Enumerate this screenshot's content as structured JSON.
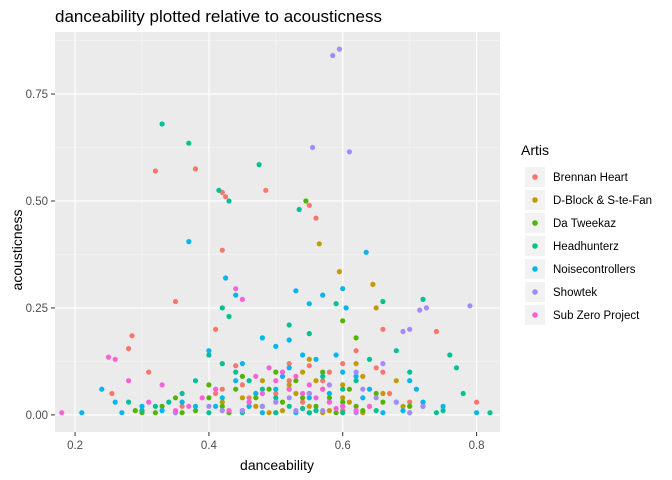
{
  "chart_data": {
    "type": "scatter",
    "title": "danceability plotted relative to acousticness",
    "xlabel": "danceability",
    "ylabel": "acousticness",
    "xlim": [
      0.17,
      0.835
    ],
    "ylim": [
      -0.04,
      0.895
    ],
    "xticks": [
      0.2,
      0.4,
      0.6,
      0.8
    ],
    "xtick_labels": [
      "0.2",
      "0.4",
      "0.6",
      "0.8"
    ],
    "yticks": [
      0.0,
      0.25,
      0.5,
      0.75
    ],
    "ytick_labels": [
      "0.00",
      "0.25",
      "0.50",
      "0.75"
    ],
    "grid": true,
    "legend_title": "Artis",
    "legend_position": "right",
    "series": [
      {
        "name": "Brennan Heart",
        "color": "#F8766D",
        "points": [
          [
            0.32,
            0.57
          ],
          [
            0.38,
            0.575
          ],
          [
            0.42,
            0.385
          ],
          [
            0.425,
            0.51
          ],
          [
            0.42,
            0.52
          ],
          [
            0.485,
            0.525
          ],
          [
            0.35,
            0.265
          ],
          [
            0.285,
            0.185
          ],
          [
            0.28,
            0.155
          ],
          [
            0.255,
            0.05
          ],
          [
            0.31,
            0.1
          ],
          [
            0.41,
            0.2
          ],
          [
            0.44,
            0.115
          ],
          [
            0.45,
            0.07
          ],
          [
            0.5,
            0.05
          ],
          [
            0.52,
            0.12
          ],
          [
            0.55,
            0.115
          ],
          [
            0.57,
            0.08
          ],
          [
            0.6,
            0.12
          ],
          [
            0.62,
            0.15
          ],
          [
            0.65,
            0.11
          ],
          [
            0.66,
            0.2
          ],
          [
            0.74,
            0.195
          ],
          [
            0.8,
            0.03
          ],
          [
            0.56,
            0.46
          ],
          [
            0.55,
            0.49
          ],
          [
            0.41,
            0.05
          ],
          [
            0.58,
            0.1
          ],
          [
            0.54,
            0.03
          ],
          [
            0.6,
            0.02
          ],
          [
            0.7,
            0.03
          ],
          [
            0.66,
            0.1
          ],
          [
            0.46,
            0.04
          ],
          [
            0.42,
            0.06
          ],
          [
            0.52,
            0.08
          ],
          [
            0.48,
            0.02
          ],
          [
            0.6,
            0.01
          ],
          [
            0.36,
            0.02
          ],
          [
            0.3,
            0.01
          ],
          [
            0.67,
            0.05
          ]
        ]
      },
      {
        "name": "D-Block & S-te-Fan",
        "color": "#C49A00",
        "points": [
          [
            0.565,
            0.4
          ],
          [
            0.595,
            0.335
          ],
          [
            0.645,
            0.305
          ],
          [
            0.65,
            0.25
          ],
          [
            0.55,
            0.13
          ],
          [
            0.57,
            0.06
          ],
          [
            0.6,
            0.04
          ],
          [
            0.5,
            0.03
          ],
          [
            0.52,
            0.07
          ],
          [
            0.62,
            0.12
          ],
          [
            0.63,
            0.09
          ],
          [
            0.45,
            0.04
          ],
          [
            0.48,
            0.08
          ],
          [
            0.55,
            0.02
          ],
          [
            0.58,
            0.01
          ],
          [
            0.64,
            0.02
          ],
          [
            0.66,
            0.05
          ],
          [
            0.53,
            0.05
          ],
          [
            0.47,
            0.02
          ],
          [
            0.42,
            0.03
          ],
          [
            0.56,
            0.08
          ],
          [
            0.61,
            0.03
          ],
          [
            0.69,
            0.02
          ],
          [
            0.68,
            0.08
          ],
          [
            0.51,
            0.01
          ],
          [
            0.57,
            0.005
          ],
          [
            0.6,
            0.07
          ],
          [
            0.54,
            0.1
          ],
          [
            0.49,
            0.005
          ],
          [
            0.63,
            0.005
          ]
        ]
      },
      {
        "name": "Da Tweekaz",
        "color": "#53B400",
        "points": [
          [
            0.545,
            0.5
          ],
          [
            0.6,
            0.22
          ],
          [
            0.62,
            0.18
          ],
          [
            0.5,
            0.1
          ],
          [
            0.45,
            0.09
          ],
          [
            0.4,
            0.07
          ],
          [
            0.52,
            0.06
          ],
          [
            0.55,
            0.05
          ],
          [
            0.58,
            0.04
          ],
          [
            0.6,
            0.03
          ],
          [
            0.62,
            0.02
          ],
          [
            0.48,
            0.02
          ],
          [
            0.42,
            0.02
          ],
          [
            0.38,
            0.01
          ],
          [
            0.35,
            0.04
          ],
          [
            0.33,
            0.02
          ],
          [
            0.3,
            0.005
          ],
          [
            0.5,
            0.005
          ],
          [
            0.55,
            0.005
          ],
          [
            0.45,
            0.01
          ],
          [
            0.47,
            0.04
          ],
          [
            0.53,
            0.08
          ],
          [
            0.57,
            0.1
          ],
          [
            0.65,
            0.05
          ],
          [
            0.7,
            0.02
          ],
          [
            0.4,
            0.04
          ],
          [
            0.44,
            0.06
          ],
          [
            0.51,
            0.03
          ],
          [
            0.56,
            0.02
          ],
          [
            0.59,
            0.005
          ],
          [
            0.36,
            0.005
          ],
          [
            0.32,
            0.005
          ],
          [
            0.29,
            0.01
          ],
          [
            0.49,
            0.06
          ],
          [
            0.54,
            0.04
          ],
          [
            0.61,
            0.06
          ],
          [
            0.63,
            0.01
          ],
          [
            0.66,
            0.03
          ],
          [
            0.43,
            0.005
          ],
          [
            0.46,
            0.02
          ]
        ]
      },
      {
        "name": "Headhunterz",
        "color": "#00C094",
        "points": [
          [
            0.33,
            0.68
          ],
          [
            0.37,
            0.635
          ],
          [
            0.475,
            0.585
          ],
          [
            0.415,
            0.525
          ],
          [
            0.43,
            0.5
          ],
          [
            0.535,
            0.48
          ],
          [
            0.42,
            0.25
          ],
          [
            0.43,
            0.23
          ],
          [
            0.52,
            0.21
          ],
          [
            0.55,
            0.19
          ],
          [
            0.59,
            0.26
          ],
          [
            0.66,
            0.265
          ],
          [
            0.72,
            0.27
          ],
          [
            0.76,
            0.14
          ],
          [
            0.77,
            0.11
          ],
          [
            0.78,
            0.05
          ],
          [
            0.82,
            0.005
          ],
          [
            0.74,
            0.005
          ],
          [
            0.72,
            0.02
          ],
          [
            0.7,
            0.1
          ],
          [
            0.68,
            0.15
          ],
          [
            0.64,
            0.13
          ],
          [
            0.62,
            0.08
          ],
          [
            0.6,
            0.06
          ],
          [
            0.58,
            0.03
          ],
          [
            0.56,
            0.01
          ],
          [
            0.54,
            0.015
          ],
          [
            0.52,
            0.02
          ],
          [
            0.5,
            0.04
          ],
          [
            0.48,
            0.06
          ],
          [
            0.46,
            0.08
          ],
          [
            0.44,
            0.1
          ],
          [
            0.42,
            0.12
          ],
          [
            0.4,
            0.14
          ],
          [
            0.38,
            0.08
          ],
          [
            0.36,
            0.05
          ],
          [
            0.34,
            0.03
          ],
          [
            0.32,
            0.02
          ],
          [
            0.3,
            0.01
          ],
          [
            0.28,
            0.03
          ],
          [
            0.55,
            0.005
          ],
          [
            0.6,
            0.005
          ],
          [
            0.65,
            0.01
          ],
          [
            0.7,
            0.005
          ],
          [
            0.75,
            0.01
          ],
          [
            0.5,
            0.005
          ],
          [
            0.45,
            0.005
          ],
          [
            0.4,
            0.005
          ],
          [
            0.35,
            0.005
          ],
          [
            0.57,
            0.09
          ]
        ]
      },
      {
        "name": "Noisecontrollers",
        "color": "#00B6EB",
        "points": [
          [
            0.37,
            0.405
          ],
          [
            0.425,
            0.32
          ],
          [
            0.44,
            0.28
          ],
          [
            0.53,
            0.29
          ],
          [
            0.57,
            0.28
          ],
          [
            0.55,
            0.26
          ],
          [
            0.6,
            0.295
          ],
          [
            0.635,
            0.38
          ],
          [
            0.605,
            0.25
          ],
          [
            0.4,
            0.15
          ],
          [
            0.48,
            0.18
          ],
          [
            0.5,
            0.16
          ],
          [
            0.52,
            0.175
          ],
          [
            0.54,
            0.14
          ],
          [
            0.45,
            0.12
          ],
          [
            0.6,
            0.1
          ],
          [
            0.62,
            0.09
          ],
          [
            0.7,
            0.08
          ],
          [
            0.72,
            0.03
          ],
          [
            0.75,
            0.02
          ],
          [
            0.8,
            0.005
          ],
          [
            0.21,
            0.005
          ],
          [
            0.24,
            0.06
          ],
          [
            0.26,
            0.03
          ],
          [
            0.33,
            0.01
          ],
          [
            0.38,
            0.02
          ],
          [
            0.42,
            0.04
          ],
          [
            0.46,
            0.02
          ],
          [
            0.5,
            0.06
          ],
          [
            0.55,
            0.04
          ],
          [
            0.58,
            0.05
          ],
          [
            0.63,
            0.04
          ],
          [
            0.68,
            0.03
          ],
          [
            0.71,
            0.06
          ],
          [
            0.44,
            0.08
          ],
          [
            0.52,
            0.11
          ],
          [
            0.56,
            0.13
          ],
          [
            0.6,
            0.02
          ],
          [
            0.48,
            0.005
          ],
          [
            0.53,
            0.005
          ],
          [
            0.66,
            0.005
          ],
          [
            0.36,
            0.03
          ],
          [
            0.3,
            0.02
          ],
          [
            0.27,
            0.005
          ],
          [
            0.51,
            0.09
          ],
          [
            0.59,
            0.14
          ],
          [
            0.64,
            0.06
          ],
          [
            0.47,
            0.05
          ],
          [
            0.41,
            0.02
          ],
          [
            0.69,
            0.01
          ]
        ]
      },
      {
        "name": "Showtek",
        "color": "#A58AFF",
        "points": [
          [
            0.585,
            0.84
          ],
          [
            0.595,
            0.855
          ],
          [
            0.555,
            0.625
          ],
          [
            0.61,
            0.615
          ],
          [
            0.79,
            0.255
          ],
          [
            0.725,
            0.25
          ],
          [
            0.715,
            0.245
          ],
          [
            0.7,
            0.2
          ],
          [
            0.69,
            0.195
          ],
          [
            0.66,
            0.12
          ],
          [
            0.62,
            0.1
          ],
          [
            0.58,
            0.07
          ],
          [
            0.55,
            0.05
          ],
          [
            0.52,
            0.04
          ],
          [
            0.5,
            0.03
          ],
          [
            0.48,
            0.02
          ],
          [
            0.45,
            0.01
          ],
          [
            0.42,
            0.01
          ],
          [
            0.6,
            0.02
          ],
          [
            0.65,
            0.04
          ],
          [
            0.68,
            0.03
          ],
          [
            0.72,
            0.02
          ],
          [
            0.57,
            0.01
          ],
          [
            0.53,
            0.01
          ],
          [
            0.63,
            0.06
          ],
          [
            0.46,
            0.03
          ],
          [
            0.4,
            0.02
          ],
          [
            0.35,
            0.005
          ],
          [
            0.62,
            0.005
          ],
          [
            0.7,
            0.005
          ]
        ]
      },
      {
        "name": "Sub Zero Project",
        "color": "#FB61D7",
        "points": [
          [
            0.18,
            0.005
          ],
          [
            0.25,
            0.135
          ],
          [
            0.26,
            0.13
          ],
          [
            0.28,
            0.08
          ],
          [
            0.33,
            0.07
          ],
          [
            0.37,
            0.02
          ],
          [
            0.39,
            0.04
          ],
          [
            0.41,
            0.06
          ],
          [
            0.44,
            0.295
          ],
          [
            0.45,
            0.27
          ],
          [
            0.47,
            0.09
          ],
          [
            0.5,
            0.08
          ],
          [
            0.52,
            0.06
          ],
          [
            0.54,
            0.05
          ],
          [
            0.56,
            0.04
          ],
          [
            0.58,
            0.03
          ],
          [
            0.6,
            0.02
          ],
          [
            0.62,
            0.01
          ],
          [
            0.49,
            0.11
          ],
          [
            0.51,
            0.1
          ],
          [
            0.53,
            0.09
          ],
          [
            0.55,
            0.07
          ],
          [
            0.57,
            0.06
          ],
          [
            0.46,
            0.03
          ],
          [
            0.43,
            0.01
          ],
          [
            0.35,
            0.01
          ],
          [
            0.31,
            0.03
          ],
          [
            0.48,
            0.05
          ],
          [
            0.59,
            0.015
          ],
          [
            0.64,
            0.02
          ]
        ]
      }
    ]
  }
}
